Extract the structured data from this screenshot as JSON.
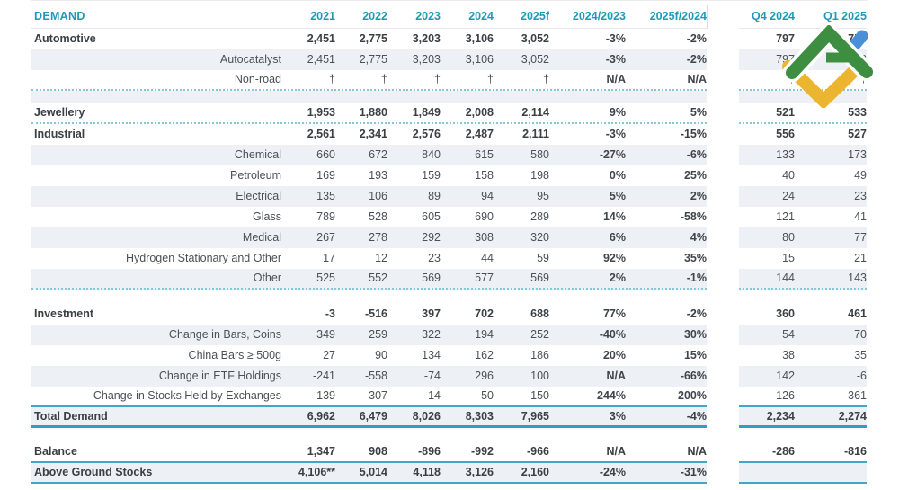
{
  "header": {
    "title": "DEMAND",
    "columns": [
      "2021",
      "2022",
      "2023",
      "2024",
      "2025f",
      "2024/2023",
      "2025f/2024"
    ],
    "quarter_columns": [
      "Q4 2024",
      "Q1 2025"
    ]
  },
  "rows": [
    {
      "label": "Automotive",
      "type": "main",
      "striped": false,
      "border": "",
      "values": [
        "2,451",
        "2,775",
        "3,203",
        "3,106",
        "3,052",
        "-3%",
        "-2%",
        "797",
        "753"
      ]
    },
    {
      "label": "Autocatalyst",
      "type": "sub",
      "striped": true,
      "border": "",
      "values": [
        "2,451",
        "2,775",
        "3,203",
        "3,106",
        "3,052",
        "-3%",
        "-2%",
        "797",
        "753"
      ]
    },
    {
      "label": "Non-road",
      "type": "sub",
      "striped": false,
      "border": "dotted",
      "values": [
        "†",
        "†",
        "†",
        "†",
        "†",
        "N/A",
        "N/A",
        "†",
        "†"
      ]
    },
    {
      "label": "",
      "type": "spacer",
      "striped": true,
      "border": "",
      "height": 14,
      "values": []
    },
    {
      "label": "Jewellery",
      "type": "main",
      "striped": false,
      "border": "dotted",
      "values": [
        "1,953",
        "1,880",
        "1,849",
        "2,008",
        "2,114",
        "9%",
        "5%",
        "521",
        "533"
      ]
    },
    {
      "label": "Industrial",
      "type": "main",
      "striped": false,
      "border": "",
      "values": [
        "2,561",
        "2,341",
        "2,576",
        "2,487",
        "2,111",
        "-3%",
        "-15%",
        "556",
        "527"
      ]
    },
    {
      "label": "Chemical",
      "type": "sub",
      "striped": true,
      "border": "",
      "values": [
        "660",
        "672",
        "840",
        "615",
        "580",
        "-27%",
        "-6%",
        "133",
        "173"
      ]
    },
    {
      "label": "Petroleum",
      "type": "sub",
      "striped": false,
      "border": "",
      "values": [
        "169",
        "193",
        "159",
        "158",
        "198",
        "0%",
        "25%",
        "40",
        "49"
      ]
    },
    {
      "label": "Electrical",
      "type": "sub",
      "striped": true,
      "border": "",
      "values": [
        "135",
        "106",
        "89",
        "94",
        "95",
        "5%",
        "2%",
        "24",
        "23"
      ]
    },
    {
      "label": "Glass",
      "type": "sub",
      "striped": false,
      "border": "",
      "values": [
        "789",
        "528",
        "605",
        "690",
        "289",
        "14%",
        "-58%",
        "121",
        "41"
      ]
    },
    {
      "label": "Medical",
      "type": "sub",
      "striped": true,
      "border": "",
      "values": [
        "267",
        "278",
        "292",
        "308",
        "320",
        "6%",
        "4%",
        "80",
        "77"
      ]
    },
    {
      "label": "Hydrogen Stationary and Other",
      "type": "sub",
      "striped": false,
      "border": "",
      "values": [
        "17",
        "12",
        "23",
        "44",
        "59",
        "92%",
        "35%",
        "15",
        "21"
      ]
    },
    {
      "label": "Other",
      "type": "sub",
      "striped": true,
      "border": "dotted",
      "values": [
        "525",
        "552",
        "569",
        "577",
        "569",
        "2%",
        "-1%",
        "144",
        "143"
      ]
    },
    {
      "label": "",
      "type": "spacer",
      "striped": false,
      "border": "",
      "height": 16,
      "values": []
    },
    {
      "label": "Investment",
      "type": "main",
      "striped": false,
      "border": "",
      "values": [
        "-3",
        "-516",
        "397",
        "702",
        "688",
        "77%",
        "-2%",
        "360",
        "461"
      ]
    },
    {
      "label": "Change in Bars, Coins",
      "type": "sub",
      "striped": true,
      "border": "",
      "values": [
        "349",
        "259",
        "322",
        "194",
        "252",
        "-40%",
        "30%",
        "54",
        "70"
      ]
    },
    {
      "label": "China Bars ≥ 500g",
      "type": "sub",
      "striped": false,
      "border": "",
      "values": [
        "27",
        "90",
        "134",
        "162",
        "186",
        "20%",
        "15%",
        "38",
        "35"
      ]
    },
    {
      "label": "Change in ETF Holdings",
      "type": "sub",
      "striped": true,
      "border": "",
      "values": [
        "-241",
        "-558",
        "-74",
        "296",
        "100",
        "N/A",
        "-66%",
        "142",
        "-6"
      ]
    },
    {
      "label": "Change in Stocks Held by Exchanges",
      "type": "sub",
      "striped": false,
      "border": "solid",
      "values": [
        "-139",
        "-307",
        "14",
        "50",
        "150",
        "244%",
        "200%",
        "126",
        "361"
      ]
    },
    {
      "label": "Total Demand",
      "type": "main",
      "striped": true,
      "border": "thick",
      "values": [
        "6,962",
        "6,479",
        "8,026",
        "8,303",
        "7,965",
        "3%",
        "-4%",
        "2,234",
        "2,274"
      ]
    },
    {
      "label": "",
      "type": "spacer",
      "striped": false,
      "border": "",
      "height": 16,
      "values": []
    },
    {
      "label": "Balance",
      "type": "main",
      "striped": false,
      "border": "solid",
      "values": [
        "1,347",
        "908",
        "-896",
        "-992",
        "-966",
        "N/A",
        "N/A",
        "-286",
        "-816"
      ]
    },
    {
      "label": "Above Ground Stocks",
      "type": "main",
      "striped": true,
      "border": "solid",
      "values": [
        "4,106**",
        "5,014",
        "4,118",
        "3,126",
        "2,160",
        "-24%",
        "-31%",
        "",
        ""
      ]
    }
  ],
  "logo": {
    "name": "litefinance-brand-logo",
    "colors": {
      "green": "#3e8e41",
      "blue": "#4a90d9",
      "yellow": "#ecb52f"
    }
  },
  "chart_data": {
    "type": "table",
    "title": "DEMAND",
    "columns": [
      "DEMAND",
      "2021",
      "2022",
      "2023",
      "2024",
      "2025f",
      "2024/2023",
      "2025f/2024",
      "Q4 2024",
      "Q1 2025"
    ],
    "rows": [
      [
        "Automotive",
        "2,451",
        "2,775",
        "3,203",
        "3,106",
        "3,052",
        "-3%",
        "-2%",
        "797",
        "753"
      ],
      [
        "Autocatalyst",
        "2,451",
        "2,775",
        "3,203",
        "3,106",
        "3,052",
        "-3%",
        "-2%",
        "797",
        "753"
      ],
      [
        "Non-road",
        "†",
        "†",
        "†",
        "†",
        "†",
        "N/A",
        "N/A",
        "†",
        "†"
      ],
      [
        "Jewellery",
        "1,953",
        "1,880",
        "1,849",
        "2,008",
        "2,114",
        "9%",
        "5%",
        "521",
        "533"
      ],
      [
        "Industrial",
        "2,561",
        "2,341",
        "2,576",
        "2,487",
        "2,111",
        "-3%",
        "-15%",
        "556",
        "527"
      ],
      [
        "Chemical",
        "660",
        "672",
        "840",
        "615",
        "580",
        "-27%",
        "-6%",
        "133",
        "173"
      ],
      [
        "Petroleum",
        "169",
        "193",
        "159",
        "158",
        "198",
        "0%",
        "25%",
        "40",
        "49"
      ],
      [
        "Electrical",
        "135",
        "106",
        "89",
        "94",
        "95",
        "5%",
        "2%",
        "24",
        "23"
      ],
      [
        "Glass",
        "789",
        "528",
        "605",
        "690",
        "289",
        "14%",
        "-58%",
        "121",
        "41"
      ],
      [
        "Medical",
        "267",
        "278",
        "292",
        "308",
        "320",
        "6%",
        "4%",
        "80",
        "77"
      ],
      [
        "Hydrogen Stationary and Other",
        "17",
        "12",
        "23",
        "44",
        "59",
        "92%",
        "35%",
        "15",
        "21"
      ],
      [
        "Other",
        "525",
        "552",
        "569",
        "577",
        "569",
        "2%",
        "-1%",
        "144",
        "143"
      ],
      [
        "Investment",
        "-3",
        "-516",
        "397",
        "702",
        "688",
        "77%",
        "-2%",
        "360",
        "461"
      ],
      [
        "Change in Bars, Coins",
        "349",
        "259",
        "322",
        "194",
        "252",
        "-40%",
        "30%",
        "54",
        "70"
      ],
      [
        "China Bars ≥ 500g",
        "27",
        "90",
        "134",
        "162",
        "186",
        "20%",
        "15%",
        "38",
        "35"
      ],
      [
        "Change in ETF Holdings",
        "-241",
        "-558",
        "-74",
        "296",
        "100",
        "N/A",
        "-66%",
        "142",
        "-6"
      ],
      [
        "Change in Stocks Held by Exchanges",
        "-139",
        "-307",
        "14",
        "50",
        "150",
        "244%",
        "200%",
        "126",
        "361"
      ],
      [
        "Total Demand",
        "6,962",
        "6,479",
        "8,026",
        "8,303",
        "7,965",
        "3%",
        "-4%",
        "2,234",
        "2,274"
      ],
      [
        "Balance",
        "1,347",
        "908",
        "-896",
        "-992",
        "-966",
        "N/A",
        "N/A",
        "-286",
        "-816"
      ],
      [
        "Above Ground Stocks",
        "4,106**",
        "5,014",
        "4,118",
        "3,126",
        "2,160",
        "-24%",
        "-31%",
        "",
        ""
      ]
    ]
  }
}
